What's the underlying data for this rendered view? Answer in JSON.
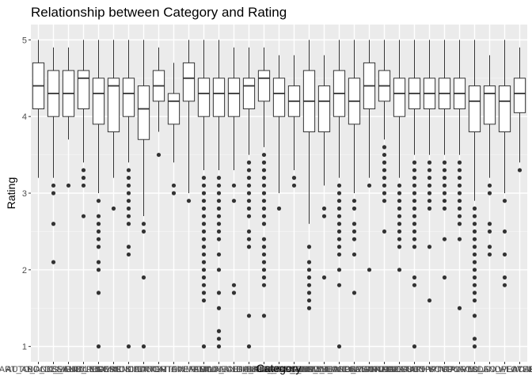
{
  "chart_data": {
    "type": "box",
    "title": "Relationship between Category and Rating",
    "xlabel": "Category",
    "ylabel": "Rating",
    "ylim": [
      0.8,
      5.2
    ],
    "yticks": [
      1,
      2,
      3,
      4,
      5
    ],
    "grid": true,
    "legend": "none",
    "categories": [
      "ART_AND_DESIGN",
      "AUTO_AND_VEHICLES",
      "BEAUTY",
      "BOOKS_AND_REFERENCE",
      "BUSINESS",
      "COMICS",
      "COMMUNICATION",
      "DATING",
      "EDUCATION",
      "ENTERTAINMENT",
      "EVENTS",
      "FAMILY",
      "FINANCE",
      "FOOD_AND_DRINK",
      "GAME",
      "HEALTH_AND_FITNESS",
      "HOUSE_AND_HOME",
      "LIBRARIES_AND_DEMO",
      "LIFESTYLE",
      "MAPS_AND_NAVIGATION",
      "MEDICAL",
      "NEWS_AND_MAGAZINES",
      "PARENTING",
      "PERSONALIZATION",
      "PHOTOGRAPHY",
      "PRODUCTIVITY",
      "SHOPPING",
      "SOCIAL",
      "SPORTS",
      "TOOLS",
      "TRAVEL_AND_LOCAL",
      "VIDEO_PLAYERS",
      "WEATHER"
    ],
    "boxes": [
      {
        "whisker_low": 3.2,
        "q1": 4.1,
        "median": 4.4,
        "q3": 4.7,
        "whisker_high": 5.0,
        "outliers": []
      },
      {
        "whisker_low": 3.2,
        "q1": 4.0,
        "median": 4.3,
        "q3": 4.6,
        "whisker_high": 4.9,
        "outliers": [
          3.1,
          3.0,
          2.6,
          2.1
        ]
      },
      {
        "whisker_low": 3.7,
        "q1": 4.0,
        "median": 4.3,
        "q3": 4.6,
        "whisker_high": 4.9,
        "outliers": [
          3.1
        ]
      },
      {
        "whisker_low": 3.4,
        "q1": 4.1,
        "median": 4.5,
        "q3": 4.6,
        "whisker_high": 5.0,
        "outliers": [
          3.3,
          3.2,
          3.1,
          2.7
        ]
      },
      {
        "whisker_low": 3.0,
        "q1": 3.9,
        "median": 4.3,
        "q3": 4.5,
        "whisker_high": 5.0,
        "outliers": [
          2.9,
          2.7,
          2.6,
          2.5,
          2.4,
          2.3,
          2.1,
          2.0,
          1.7,
          1.0
        ]
      },
      {
        "whisker_low": 3.2,
        "q1": 3.8,
        "median": 4.4,
        "q3": 4.5,
        "whisker_high": 5.0,
        "outliers": [
          2.8
        ]
      },
      {
        "whisker_low": 3.4,
        "q1": 4.0,
        "median": 4.3,
        "q3": 4.5,
        "whisker_high": 5.0,
        "outliers": [
          3.3,
          3.2,
          3.1,
          3.0,
          2.9,
          2.8,
          2.7,
          2.6,
          2.3,
          2.2,
          1.0
        ]
      },
      {
        "whisker_low": 2.7,
        "q1": 3.7,
        "median": 4.1,
        "q3": 4.4,
        "whisker_high": 5.0,
        "outliers": [
          2.6,
          2.5,
          1.9,
          1.0
        ]
      },
      {
        "whisker_low": 3.8,
        "q1": 4.2,
        "median": 4.4,
        "q3": 4.6,
        "whisker_high": 4.9,
        "outliers": [
          3.5
        ]
      },
      {
        "whisker_low": 3.4,
        "q1": 3.9,
        "median": 4.2,
        "q3": 4.3,
        "whisker_high": 4.7,
        "outliers": [
          3.1,
          3.0
        ]
      },
      {
        "whisker_low": 3.0,
        "q1": 4.2,
        "median": 4.5,
        "q3": 4.7,
        "whisker_high": 5.0,
        "outliers": [
          2.9
        ]
      },
      {
        "whisker_low": 3.3,
        "q1": 4.0,
        "median": 4.3,
        "q3": 4.5,
        "whisker_high": 5.0,
        "outliers": [
          3.2,
          3.1,
          3.0,
          2.9,
          2.8,
          2.7,
          2.6,
          2.5,
          2.4,
          2.3,
          2.2,
          2.1,
          2.0,
          1.9,
          1.8,
          1.7,
          1.6,
          1.0
        ]
      },
      {
        "whisker_low": 3.3,
        "q1": 4.0,
        "median": 4.3,
        "q3": 4.5,
        "whisker_high": 5.0,
        "outliers": [
          3.2,
          3.1,
          3.0,
          2.9,
          2.8,
          2.7,
          2.6,
          2.5,
          2.4,
          2.2,
          2.0,
          1.7,
          1.5,
          1.2,
          1.1,
          1.0
        ]
      },
      {
        "whisker_low": 3.3,
        "q1": 4.0,
        "median": 4.3,
        "q3": 4.5,
        "whisker_high": 4.9,
        "outliers": [
          3.1,
          2.9,
          1.8,
          1.7
        ]
      },
      {
        "whisker_low": 3.5,
        "q1": 4.1,
        "median": 4.4,
        "q3": 4.5,
        "whisker_high": 4.9,
        "outliers": [
          3.4,
          3.3,
          3.2,
          3.1,
          3.0,
          2.9,
          2.8,
          2.7,
          2.5,
          2.4,
          2.3,
          1.4,
          1.0
        ]
      },
      {
        "whisker_low": 3.6,
        "q1": 4.2,
        "median": 4.5,
        "q3": 4.6,
        "whisker_high": 4.9,
        "outliers": [
          3.5,
          3.4,
          3.3,
          3.2,
          3.1,
          3.0,
          2.9,
          2.8,
          2.7,
          2.6,
          2.4,
          2.3,
          2.2,
          2.1,
          2.0,
          1.9,
          1.8,
          1.4
        ]
      },
      {
        "whisker_low": 3.0,
        "q1": 4.0,
        "median": 4.3,
        "q3": 4.5,
        "whisker_high": 4.8,
        "outliers": [
          2.8
        ]
      },
      {
        "whisker_low": 3.3,
        "q1": 4.0,
        "median": 4.2,
        "q3": 4.4,
        "whisker_high": 4.8,
        "outliers": [
          3.2,
          3.1
        ]
      },
      {
        "whisker_low": 2.6,
        "q1": 3.8,
        "median": 4.2,
        "q3": 4.6,
        "whisker_high": 5.0,
        "outliers": [
          2.3,
          2.1,
          2.0,
          1.9,
          1.8,
          1.7,
          1.6,
          1.5
        ]
      },
      {
        "whisker_low": 3.1,
        "q1": 3.8,
        "median": 4.2,
        "q3": 4.4,
        "whisker_high": 4.8,
        "outliers": [
          2.8,
          2.7,
          1.9
        ]
      },
      {
        "whisker_low": 3.2,
        "q1": 4.0,
        "median": 4.3,
        "q3": 4.6,
        "whisker_high": 5.0,
        "outliers": [
          3.1,
          3.0,
          2.9,
          2.8,
          2.7,
          2.6,
          2.5,
          2.4,
          2.3,
          2.2,
          2.0,
          1.8,
          1.0
        ]
      },
      {
        "whisker_low": 3.0,
        "q1": 3.9,
        "median": 4.2,
        "q3": 4.5,
        "whisker_high": 5.0,
        "outliers": [
          2.9,
          2.8,
          2.6,
          2.5,
          2.4,
          2.2,
          1.7
        ]
      },
      {
        "whisker_low": 3.2,
        "q1": 4.1,
        "median": 4.4,
        "q3": 4.7,
        "whisker_high": 5.0,
        "outliers": [
          3.1,
          2.0
        ]
      },
      {
        "whisker_low": 3.7,
        "q1": 4.2,
        "median": 4.4,
        "q3": 4.6,
        "whisker_high": 5.0,
        "outliers": [
          3.6,
          3.5,
          3.4,
          3.3,
          3.2,
          3.1,
          3.0,
          2.9,
          2.5
        ]
      },
      {
        "whisker_low": 3.2,
        "q1": 4.0,
        "median": 4.3,
        "q3": 4.5,
        "whisker_high": 5.0,
        "outliers": [
          3.1,
          3.0,
          2.9,
          2.8,
          2.7,
          2.6,
          2.5,
          2.4,
          2.3,
          2.0
        ]
      },
      {
        "whisker_low": 3.5,
        "q1": 4.1,
        "median": 4.3,
        "q3": 4.5,
        "whisker_high": 5.0,
        "outliers": [
          3.4,
          3.3,
          3.2,
          3.1,
          3.0,
          2.9,
          2.8,
          2.7,
          2.6,
          2.5,
          2.4,
          2.3,
          1.9,
          1.8,
          1.0
        ]
      },
      {
        "whisker_low": 3.5,
        "q1": 4.1,
        "median": 4.3,
        "q3": 4.5,
        "whisker_high": 5.0,
        "outliers": [
          3.4,
          3.3,
          3.2,
          3.1,
          3.0,
          2.9,
          2.8,
          2.3,
          1.6
        ]
      },
      {
        "whisker_low": 3.5,
        "q1": 4.1,
        "median": 4.3,
        "q3": 4.5,
        "whisker_high": 5.0,
        "outliers": [
          3.4,
          3.3,
          3.2,
          3.1,
          3.0,
          2.9,
          2.8,
          2.4,
          1.9
        ]
      },
      {
        "whisker_low": 3.5,
        "q1": 4.1,
        "median": 4.3,
        "q3": 4.5,
        "whisker_high": 5.0,
        "outliers": [
          3.4,
          3.3,
          3.2,
          3.1,
          3.0,
          2.9,
          2.8,
          2.7,
          2.6,
          2.4,
          1.5
        ]
      },
      {
        "whisker_low": 2.9,
        "q1": 3.8,
        "median": 4.2,
        "q3": 4.4,
        "whisker_high": 5.0,
        "outliers": [
          2.8,
          2.7,
          2.6,
          2.5,
          2.4,
          2.3,
          2.2,
          2.1,
          2.0,
          1.9,
          1.8,
          1.7,
          1.6,
          1.4,
          1.1,
          1.0
        ]
      },
      {
        "whisker_low": 3.2,
        "q1": 3.9,
        "median": 4.3,
        "q3": 4.4,
        "whisker_high": 4.8,
        "outliers": [
          3.1,
          3.0,
          2.6,
          2.5,
          2.3,
          2.2
        ]
      },
      {
        "whisker_low": 3.0,
        "q1": 3.8,
        "median": 4.2,
        "q3": 4.4,
        "whisker_high": 5.0,
        "outliers": [
          2.9,
          2.5,
          2.2,
          1.9,
          1.8
        ]
      },
      {
        "whisker_low": 3.4,
        "q1": 4.05,
        "median": 4.3,
        "q3": 4.5,
        "whisker_high": 4.9,
        "outliers": [
          3.3
        ]
      }
    ]
  }
}
